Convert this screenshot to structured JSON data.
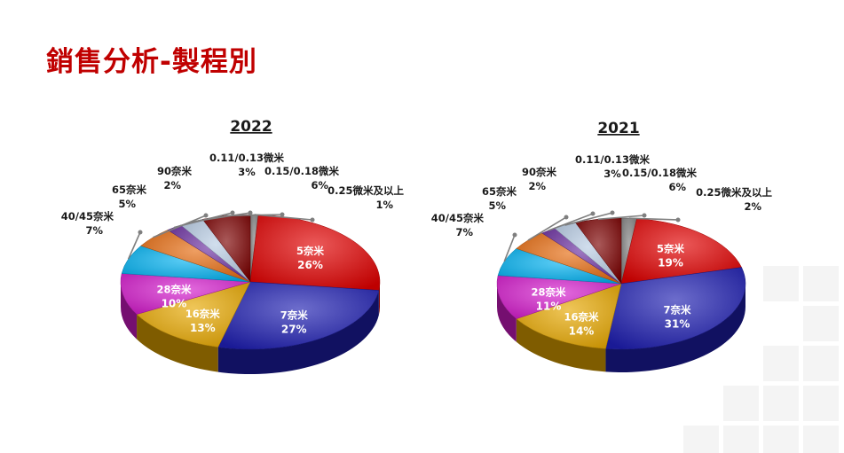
{
  "page": {
    "title": "銷售分析-製程別"
  },
  "colors": {
    "title": "#c00000",
    "label_text": "#1a1a1a",
    "slice_text": "#ffffff",
    "leader_line": "#7f7f7f"
  },
  "chart_data": [
    {
      "type": "pie",
      "title": "2022",
      "slices": [
        {
          "label": "0.25微米及以上",
          "value": 1,
          "color": "#7f7f7f"
        },
        {
          "label": "5奈米",
          "value": 26,
          "color": "#e00000"
        },
        {
          "label": "7奈米",
          "value": 27,
          "color": "#1f1fb0"
        },
        {
          "label": "16奈米",
          "value": 13,
          "color": "#e6a700"
        },
        {
          "label": "28奈米",
          "value": 10,
          "color": "#d41ccc"
        },
        {
          "label": "40/45奈米",
          "value": 7,
          "color": "#00b0f0"
        },
        {
          "label": "65奈米",
          "value": 5,
          "color": "#e56a0e"
        },
        {
          "label": "90奈米",
          "value": 2,
          "color": "#6b2fa0"
        },
        {
          "label": "0.11/0.13微米",
          "value": 3,
          "color": "#b8cce4"
        },
        {
          "label": "0.15/0.18微米",
          "value": 6,
          "color": "#7a0000"
        }
      ]
    },
    {
      "type": "pie",
      "title": "2021",
      "slices": [
        {
          "label": "0.25微米及以上",
          "value": 2,
          "color": "#7f7f7f"
        },
        {
          "label": "5奈米",
          "value": 19,
          "color": "#e00000"
        },
        {
          "label": "7奈米",
          "value": 31,
          "color": "#1f1fb0"
        },
        {
          "label": "16奈米",
          "value": 14,
          "color": "#e6a700"
        },
        {
          "label": "28奈米",
          "value": 11,
          "color": "#d41ccc"
        },
        {
          "label": "40/45奈米",
          "value": 7,
          "color": "#00b0f0"
        },
        {
          "label": "65奈米",
          "value": 5,
          "color": "#e56a0e"
        },
        {
          "label": "90奈米",
          "value": 2,
          "color": "#6b2fa0"
        },
        {
          "label": "0.11/0.13微米",
          "value": 3,
          "color": "#b8cce4"
        },
        {
          "label": "0.15/0.18微米",
          "value": 6,
          "color": "#7a0000"
        }
      ]
    }
  ]
}
